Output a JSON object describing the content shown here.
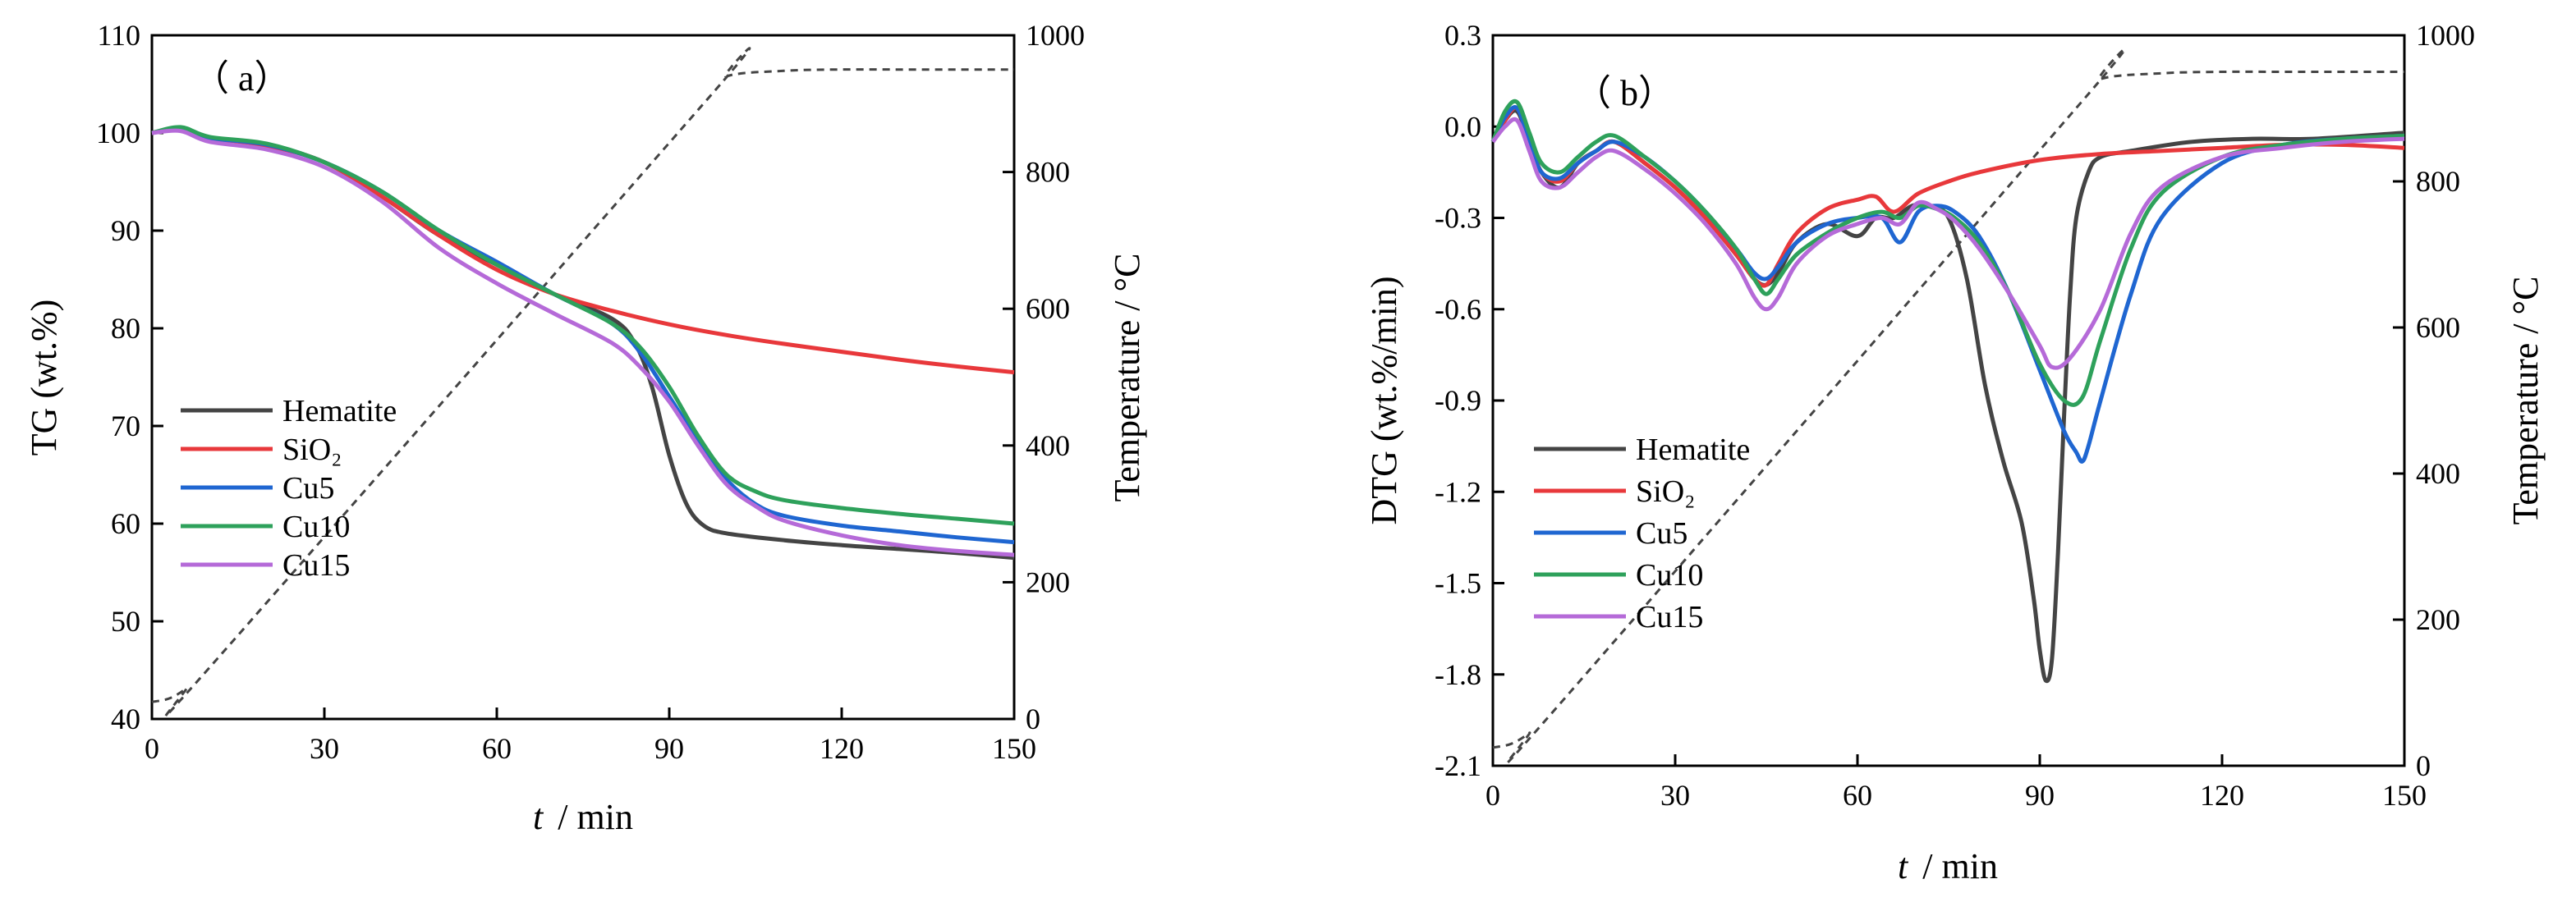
{
  "chart_data": [
    {
      "type": "line",
      "panel_label": "（ a）",
      "ylabel": "TG (wt.%)",
      "xlabel_var": "t",
      "xlabel_unit": "/ min",
      "y2label": "Temperature / °C",
      "xlim": [
        0,
        150
      ],
      "ylim": [
        40,
        110
      ],
      "y2lim": [
        0,
        1000
      ],
      "xticks": [
        "0",
        "30",
        "60",
        "90",
        "120",
        "150"
      ],
      "yticks": [
        "40",
        "50",
        "60",
        "70",
        "80",
        "90",
        "100",
        "110"
      ],
      "y2ticks": [
        "0",
        "200",
        "400",
        "600",
        "800",
        "1000"
      ],
      "legend_position": "lower-left",
      "series": [
        {
          "name": "Hematite",
          "color": "#444444",
          "x": [
            0,
            5,
            10,
            20,
            30,
            40,
            50,
            60,
            70,
            80,
            84,
            87,
            90,
            93,
            96,
            100,
            110,
            120,
            130,
            140,
            150
          ],
          "y": [
            100,
            100.5,
            99.5,
            98.8,
            97,
            93.5,
            89.5,
            86.5,
            83.5,
            81,
            78.5,
            74,
            67,
            62,
            59.8,
            59,
            58.3,
            57.8,
            57.4,
            57,
            56.5
          ]
        },
        {
          "name": "SiO₂",
          "color": "#e8383b",
          "x": [
            0,
            5,
            10,
            20,
            30,
            40,
            50,
            60,
            70,
            80,
            90,
            100,
            110,
            120,
            130,
            140,
            150
          ],
          "y": [
            100,
            100.5,
            99.5,
            98.7,
            97,
            93.5,
            89.5,
            86,
            83.5,
            81.8,
            80.4,
            79.3,
            78.4,
            77.6,
            76.8,
            76.1,
            75.5
          ]
        },
        {
          "name": "Cu5",
          "color": "#1f66d1",
          "x": [
            0,
            5,
            10,
            20,
            30,
            40,
            50,
            60,
            70,
            80,
            85,
            90,
            95,
            100,
            105,
            110,
            120,
            130,
            140,
            150
          ],
          "y": [
            100,
            100.5,
            99.5,
            98.8,
            97,
            94,
            90,
            86.8,
            83.5,
            80.5,
            77.5,
            73,
            68.5,
            64.5,
            62,
            60.8,
            59.8,
            59.2,
            58.6,
            58.1
          ]
        },
        {
          "name": "Cu10",
          "color": "#2ea15b",
          "x": [
            0,
            5,
            10,
            20,
            30,
            40,
            50,
            60,
            70,
            80,
            85,
            90,
            95,
            100,
            105,
            110,
            120,
            130,
            140,
            150
          ],
          "y": [
            100,
            100.6,
            99.6,
            98.9,
            97,
            94,
            90,
            86.5,
            83.5,
            80.5,
            78,
            74,
            69,
            65,
            63.3,
            62.4,
            61.6,
            61,
            60.5,
            60
          ]
        },
        {
          "name": "Cu15",
          "color": "#b56ad8",
          "x": [
            0,
            5,
            10,
            20,
            30,
            40,
            50,
            60,
            70,
            80,
            85,
            90,
            95,
            100,
            105,
            110,
            120,
            130,
            140,
            150
          ],
          "y": [
            100,
            100.2,
            99.1,
            98.3,
            96.5,
            93,
            88.2,
            84.6,
            81.5,
            78.5,
            76,
            72.5,
            68,
            64,
            61.8,
            60.3,
            58.8,
            57.8,
            57.2,
            56.8
          ]
        }
      ],
      "temperature": {
        "name": "Temperature",
        "style": "dashed",
        "color": "#444444",
        "x": [
          0,
          3,
          6,
          10,
          97,
          100,
          110,
          120,
          130,
          140,
          150
        ],
        "y": [
          25,
          30,
          45,
          75,
          910,
          940,
          948,
          950,
          950,
          950,
          950
        ]
      }
    },
    {
      "type": "line",
      "panel_label": "（ b）",
      "ylabel": "DTG (wt.%/min)",
      "xlabel_var": "t",
      "xlabel_unit": "/ min",
      "y2label": "Temperature / °C",
      "xlim": [
        0,
        150
      ],
      "ylim": [
        -2.1,
        0.3
      ],
      "y2lim": [
        0,
        1000
      ],
      "xticks": [
        "0",
        "30",
        "60",
        "90",
        "120",
        "150"
      ],
      "yticks": [
        "-2.1",
        "-1.8",
        "-1.5",
        "-1.2",
        "-0.9",
        "-0.6",
        "-0.3",
        "0.0",
        "0.3"
      ],
      "y2ticks": [
        "0",
        "200",
        "400",
        "600",
        "800",
        "1000"
      ],
      "legend_position": "lower-left",
      "series": [
        {
          "name": "Hematite",
          "color": "#444444",
          "x": [
            0,
            2,
            4,
            6,
            8,
            11,
            14,
            17,
            20,
            25,
            30,
            35,
            40,
            43,
            45,
            47,
            50,
            55,
            60,
            63,
            66,
            69,
            72,
            75,
            78,
            81,
            84,
            87,
            89,
            90,
            91,
            92,
            93,
            94,
            95,
            96,
            98,
            100,
            105,
            115,
            125,
            135,
            150
          ],
          "y": [
            -0.05,
            0.02,
            0.05,
            -0.05,
            -0.15,
            -0.2,
            -0.12,
            -0.08,
            -0.05,
            -0.12,
            -0.2,
            -0.3,
            -0.42,
            -0.5,
            -0.52,
            -0.48,
            -0.38,
            -0.32,
            -0.36,
            -0.3,
            -0.3,
            -0.26,
            -0.26,
            -0.3,
            -0.5,
            -0.85,
            -1.1,
            -1.3,
            -1.55,
            -1.72,
            -1.82,
            -1.75,
            -1.4,
            -0.95,
            -0.55,
            -0.3,
            -0.15,
            -0.1,
            -0.08,
            -0.05,
            -0.04,
            -0.04,
            -0.02
          ]
        },
        {
          "name": "SiO₂",
          "color": "#e8383b",
          "x": [
            0,
            2,
            4,
            6,
            8,
            11,
            14,
            17,
            20,
            25,
            30,
            35,
            40,
            43,
            45,
            47,
            50,
            55,
            60,
            63,
            66,
            70,
            75,
            80,
            90,
            100,
            110,
            120,
            130,
            140,
            150
          ],
          "y": [
            -0.05,
            0.02,
            0.06,
            -0.05,
            -0.15,
            -0.18,
            -0.12,
            -0.08,
            -0.05,
            -0.12,
            -0.2,
            -0.3,
            -0.42,
            -0.5,
            -0.52,
            -0.45,
            -0.35,
            -0.27,
            -0.24,
            -0.23,
            -0.28,
            -0.22,
            -0.18,
            -0.15,
            -0.11,
            -0.09,
            -0.08,
            -0.07,
            -0.06,
            -0.06,
            -0.07
          ]
        },
        {
          "name": "Cu5",
          "color": "#1f66d1",
          "x": [
            0,
            2,
            4,
            6,
            8,
            11,
            14,
            17,
            20,
            25,
            30,
            35,
            40,
            43,
            45,
            47,
            50,
            55,
            60,
            64,
            67,
            70,
            73,
            76,
            80,
            85,
            90,
            94,
            96,
            97,
            98,
            100,
            105,
            110,
            120,
            130,
            140,
            150
          ],
          "y": [
            -0.05,
            0.03,
            0.06,
            -0.05,
            -0.15,
            -0.17,
            -0.12,
            -0.08,
            -0.05,
            -0.1,
            -0.18,
            -0.28,
            -0.4,
            -0.48,
            -0.5,
            -0.46,
            -0.38,
            -0.32,
            -0.3,
            -0.3,
            -0.38,
            -0.28,
            -0.26,
            -0.28,
            -0.36,
            -0.55,
            -0.8,
            -1.0,
            -1.07,
            -1.1,
            -1.05,
            -0.9,
            -0.55,
            -0.3,
            -0.12,
            -0.06,
            -0.04,
            -0.03
          ]
        },
        {
          "name": "Cu10",
          "color": "#2ea15b",
          "x": [
            0,
            2,
            4,
            6,
            8,
            11,
            14,
            17,
            20,
            25,
            30,
            35,
            40,
            43,
            45,
            47,
            50,
            55,
            60,
            64,
            67,
            70,
            73,
            76,
            80,
            85,
            90,
            94,
            97,
            100,
            105,
            110,
            120,
            130,
            140,
            150
          ],
          "y": [
            -0.05,
            0.05,
            0.08,
            -0.02,
            -0.12,
            -0.15,
            -0.1,
            -0.05,
            -0.03,
            -0.1,
            -0.18,
            -0.28,
            -0.4,
            -0.5,
            -0.55,
            -0.5,
            -0.42,
            -0.35,
            -0.3,
            -0.28,
            -0.3,
            -0.26,
            -0.27,
            -0.3,
            -0.38,
            -0.55,
            -0.78,
            -0.9,
            -0.89,
            -0.7,
            -0.4,
            -0.22,
            -0.1,
            -0.06,
            -0.04,
            -0.03
          ]
        },
        {
          "name": "Cu15",
          "color": "#b56ad8",
          "x": [
            0,
            2,
            4,
            6,
            8,
            11,
            14,
            17,
            20,
            25,
            30,
            35,
            40,
            43,
            45,
            47,
            50,
            55,
            60,
            64,
            67,
            70,
            73,
            76,
            80,
            85,
            90,
            92,
            95,
            100,
            105,
            110,
            120,
            130,
            140,
            150
          ],
          "y": [
            -0.05,
            0.0,
            0.02,
            -0.08,
            -0.18,
            -0.2,
            -0.15,
            -0.1,
            -0.08,
            -0.14,
            -0.22,
            -0.32,
            -0.45,
            -0.56,
            -0.6,
            -0.56,
            -0.45,
            -0.36,
            -0.32,
            -0.3,
            -0.32,
            -0.25,
            -0.27,
            -0.31,
            -0.4,
            -0.55,
            -0.72,
            -0.79,
            -0.76,
            -0.6,
            -0.35,
            -0.2,
            -0.1,
            -0.07,
            -0.05,
            -0.04
          ]
        }
      ],
      "temperature": {
        "name": "Temperature",
        "style": "dashed",
        "color": "#444444",
        "x": [
          0,
          3,
          6,
          10,
          97,
          100,
          110,
          120,
          130,
          140,
          150
        ],
        "y": [
          25,
          30,
          45,
          75,
          910,
          940,
          948,
          950,
          950,
          950,
          950
        ]
      }
    }
  ]
}
